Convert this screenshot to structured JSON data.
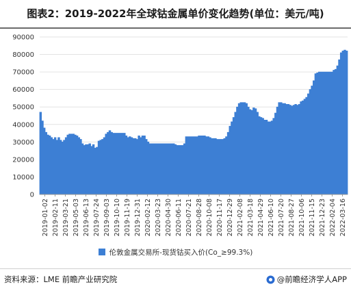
{
  "header": {
    "title": "图表2：2019-2022年全球钴金属单价变化趋势(单位：美元/吨)"
  },
  "footer": {
    "source": "资料来源：LME 前瞻产业研究院",
    "brand": "@前瞻经济学人APP"
  },
  "colors": {
    "series": "#3d7fd4",
    "grid": "#e3e3e3",
    "axis": "#999999"
  },
  "chart_data": {
    "type": "area",
    "title": "",
    "xlabel": "",
    "ylabel": "",
    "ylim": [
      0,
      90000
    ],
    "y_ticks": [
      0,
      10000,
      20000,
      30000,
      40000,
      50000,
      60000,
      70000,
      80000,
      90000
    ],
    "grid": "horizontal",
    "legend_position": "bottom",
    "x_tick_labels": [
      "2019-01-02",
      "2019-02-11",
      "2019-03-21",
      "2019-05-03",
      "2019-06-13",
      "2019-07-24",
      "2019-09-03",
      "2019-10-10",
      "2019-11-19",
      "2019-12-31",
      "2020-02-12",
      "2020-03-23",
      "2020-04-30",
      "2020-06-11",
      "2020-07-21",
      "2020-08-28",
      "2020-10-08",
      "2020-11-17",
      "2020-12-29",
      "2021-02-08",
      "2021-03-18",
      "2021-04-29",
      "2021-06-10",
      "2021-07-20",
      "2021-08-27",
      "2021-10-06",
      "2021-11-15",
      "2021-12-23",
      "2022-02-04",
      "2022-03-16"
    ],
    "series": [
      {
        "name": "伦敦金属交易所-现货钴买入价(Co_≥99.3%)",
        "x": [
          "2019-01-02",
          "2019-01-09",
          "2019-01-16",
          "2019-01-23",
          "2019-01-30",
          "2019-02-06",
          "2019-02-13",
          "2019-02-20",
          "2019-02-27",
          "2019-03-06",
          "2019-03-13",
          "2019-03-20",
          "2019-03-27",
          "2019-04-03",
          "2019-04-10",
          "2019-04-17",
          "2019-04-24",
          "2019-05-01",
          "2019-05-08",
          "2019-05-15",
          "2019-05-22",
          "2019-05-29",
          "2019-06-05",
          "2019-06-12",
          "2019-06-19",
          "2019-06-26",
          "2019-07-03",
          "2019-07-10",
          "2019-07-17",
          "2019-07-24",
          "2019-07-31",
          "2019-08-07",
          "2019-08-14",
          "2019-08-21",
          "2019-08-28",
          "2019-09-04",
          "2019-09-11",
          "2019-09-18",
          "2019-09-25",
          "2019-10-02",
          "2019-10-09",
          "2019-10-16",
          "2019-10-23",
          "2019-10-30",
          "2019-11-06",
          "2019-11-13",
          "2019-11-20",
          "2019-11-27",
          "2019-12-04",
          "2019-12-11",
          "2019-12-18",
          "2019-12-25",
          "2020-01-01",
          "2020-01-08",
          "2020-01-15",
          "2020-01-22",
          "2020-01-29",
          "2020-02-05",
          "2020-02-12",
          "2020-02-19",
          "2020-02-26",
          "2020-03-04",
          "2020-03-11",
          "2020-03-18",
          "2020-03-25",
          "2020-04-01",
          "2020-04-08",
          "2020-04-15",
          "2020-04-22",
          "2020-04-29",
          "2020-05-06",
          "2020-05-13",
          "2020-05-20",
          "2020-05-27",
          "2020-06-03",
          "2020-06-10",
          "2020-06-17",
          "2020-06-24",
          "2020-07-01",
          "2020-07-08",
          "2020-07-15",
          "2020-07-22",
          "2020-07-29",
          "2020-08-05",
          "2020-08-12",
          "2020-08-19",
          "2020-08-26",
          "2020-09-02",
          "2020-09-09",
          "2020-09-16",
          "2020-09-23",
          "2020-09-30",
          "2020-10-07",
          "2020-10-14",
          "2020-10-21",
          "2020-10-28",
          "2020-11-04",
          "2020-11-11",
          "2020-11-18",
          "2020-11-25",
          "2020-12-02",
          "2020-12-09",
          "2020-12-16",
          "2020-12-23",
          "2020-12-30",
          "2021-01-06",
          "2021-01-13",
          "2021-01-20",
          "2021-01-27",
          "2021-02-03",
          "2021-02-10",
          "2021-02-17",
          "2021-02-24",
          "2021-03-03",
          "2021-03-10",
          "2021-03-17",
          "2021-03-24",
          "2021-03-31",
          "2021-04-07",
          "2021-04-14",
          "2021-04-21",
          "2021-04-28",
          "2021-05-05",
          "2021-05-12",
          "2021-05-19",
          "2021-05-26",
          "2021-06-02",
          "2021-06-09",
          "2021-06-16",
          "2021-06-23",
          "2021-06-30",
          "2021-07-07",
          "2021-07-14",
          "2021-07-21",
          "2021-07-28",
          "2021-08-04",
          "2021-08-11",
          "2021-08-18",
          "2021-08-25",
          "2021-09-01",
          "2021-09-08",
          "2021-09-15",
          "2021-09-22",
          "2021-09-29",
          "2021-10-06",
          "2021-10-13",
          "2021-10-20",
          "2021-10-27",
          "2021-11-03",
          "2021-11-10",
          "2021-11-17",
          "2021-11-24",
          "2021-12-01",
          "2021-12-08",
          "2021-12-15",
          "2021-12-22",
          "2021-12-29",
          "2022-01-05",
          "2022-01-12",
          "2022-01-19",
          "2022-01-26",
          "2022-02-02",
          "2022-02-09",
          "2022-02-16",
          "2022-02-23",
          "2022-03-02",
          "2022-03-09",
          "2022-03-16",
          "2022-03-23",
          "2022-03-30"
        ],
        "values": [
          47000,
          42000,
          38000,
          35500,
          34000,
          33500,
          32500,
          31500,
          32500,
          31000,
          32500,
          31000,
          30000,
          31000,
          32500,
          34000,
          34500,
          34500,
          34500,
          34000,
          33500,
          32500,
          31500,
          29000,
          28000,
          28500,
          28500,
          29000,
          27500,
          28500,
          26500,
          27000,
          30500,
          31000,
          31500,
          32500,
          34500,
          35500,
          36500,
          35500,
          35000,
          35000,
          35000,
          35000,
          35000,
          35000,
          35000,
          33500,
          32500,
          33000,
          32500,
          32000,
          32000,
          31500,
          33500,
          32500,
          33500,
          33500,
          31500,
          30000,
          29000,
          29000,
          29000,
          29000,
          29000,
          29000,
          29000,
          29000,
          29000,
          29000,
          29000,
          29000,
          29000,
          29000,
          28500,
          28000,
          28000,
          28000,
          28000,
          29000,
          33000,
          33000,
          33000,
          33000,
          33000,
          33000,
          33000,
          33500,
          33500,
          33500,
          33500,
          33000,
          33000,
          32500,
          32000,
          32000,
          32000,
          31500,
          31500,
          31500,
          31500,
          32000,
          33000,
          35500,
          39000,
          41500,
          44000,
          47000,
          50000,
          52000,
          52500,
          52500,
          52500,
          52000,
          50000,
          48500,
          48000,
          49500,
          49000,
          47000,
          44500,
          44000,
          43500,
          42500,
          42500,
          41500,
          41500,
          42000,
          43500,
          46500,
          50000,
          52500,
          52500,
          52000,
          52000,
          51500,
          51500,
          51000,
          50500,
          51000,
          51500,
          51000,
          51500,
          53000,
          53500,
          54500,
          55500,
          57500,
          60000,
          62000,
          65000,
          69000,
          69500,
          70000,
          70000,
          70000,
          70000,
          70000,
          70000,
          70000,
          70000,
          71000,
          71500,
          73500,
          77000,
          81000,
          82000,
          82500,
          82000,
          81500
        ]
      }
    ]
  }
}
